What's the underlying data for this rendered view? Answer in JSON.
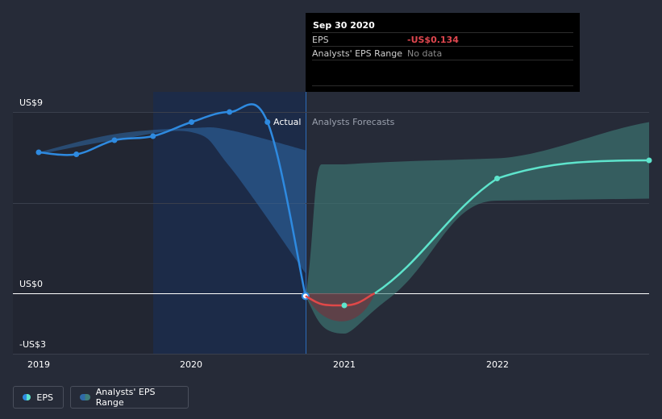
{
  "chart_data": {
    "type": "line",
    "y_axis": {
      "ticks": [
        {
          "value": 9,
          "label": "US$9"
        },
        {
          "value": 0,
          "label": "US$0"
        },
        {
          "value": -3,
          "label": "-US$3"
        }
      ],
      "ylim": [
        -3,
        9
      ]
    },
    "x_axis": {
      "ticks": [
        "2019",
        "2020",
        "2021",
        "2022"
      ]
    },
    "series": [
      {
        "name": "EPS",
        "color": "#2e8ae0",
        "kind": "actual",
        "points": [
          {
            "x": "2019-01-01",
            "y": 7.0
          },
          {
            "x": "2019-04-01",
            "y": 6.9
          },
          {
            "x": "2019-07-01",
            "y": 7.6
          },
          {
            "x": "2019-10-01",
            "y": 7.8
          },
          {
            "x": "2020-01-01",
            "y": 8.5
          },
          {
            "x": "2020-04-01",
            "y": 9.0
          },
          {
            "x": "2020-07-01",
            "y": 8.5
          },
          {
            "x": "2020-09-30",
            "y": -0.134
          }
        ]
      },
      {
        "name": "EPS",
        "kind": "forecast",
        "color": "#5ee4cc",
        "negative_color": "#e04848",
        "points": [
          {
            "x": "2020-09-30",
            "y": -0.134
          },
          {
            "x": "2021-01-01",
            "y": -0.6
          },
          {
            "x": "2022-01-01",
            "y": 5.7
          },
          {
            "x": "2022-12-31",
            "y": 6.6
          }
        ]
      }
    ],
    "analyst_range": {
      "color": "#3f7f7a",
      "points": [
        {
          "x": "2020-09-30",
          "low": -0.134,
          "high": -0.134
        },
        {
          "x": "2021-01-01",
          "low": -2.0,
          "high": 6.4
        },
        {
          "x": "2022-01-01",
          "low": 4.6,
          "high": 6.7
        },
        {
          "x": "2022-12-31",
          "low": 4.7,
          "high": 8.5
        }
      ]
    },
    "past_range": {
      "points": [
        {
          "x": "2019-01-01",
          "low": 6.9,
          "high": 7.0
        },
        {
          "x": "2019-07-01",
          "low": 7.6,
          "high": 7.9
        },
        {
          "x": "2020-01-01",
          "low": 8.0,
          "high": 8.2
        },
        {
          "x": "2020-04-01",
          "low": 6.3,
          "high": 8.1
        },
        {
          "x": "2020-09-30",
          "low": 1.0,
          "high": 7.1
        }
      ]
    },
    "divider_labels": {
      "left": "Actual",
      "right": "Analysts Forecasts"
    }
  },
  "tooltip": {
    "date": "Sep 30 2020",
    "rows": [
      {
        "key": "EPS",
        "value": "-US$0.134"
      },
      {
        "key": "Analysts' EPS Range",
        "value": "No data"
      }
    ]
  },
  "legend": [
    {
      "label": "EPS",
      "color": "#2e8ae0",
      "color2": "#5ee4cc"
    },
    {
      "label": "Analysts' EPS Range",
      "color": "#2f6aa8",
      "color2": "#3f7f7a"
    }
  ]
}
